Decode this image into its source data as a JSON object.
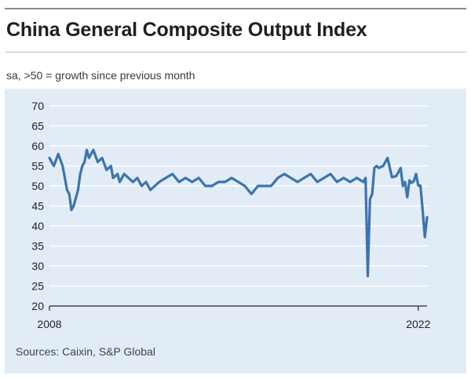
{
  "title": "China General Composite Output Index",
  "subtitle": "sa, >50 = growth since previous month",
  "source": "Sources: Caixin, S&P Global",
  "colors": {
    "line": "#3c74ad",
    "panel": "#e2ecf7",
    "grid": "#ffffff",
    "axis": "#222222"
  },
  "chart_data": {
    "type": "line",
    "title": "China General Composite Output Index",
    "xlabel": "",
    "ylabel": "",
    "ylim": [
      20,
      70
    ],
    "xlim": [
      "2008-01",
      "2022-05"
    ],
    "grid": true,
    "legend": "none",
    "y_ticks": [
      "70",
      "65",
      "60",
      "55",
      "50",
      "45",
      "40",
      "35",
      "30",
      "25",
      "20"
    ],
    "x_ticks": [
      "2008",
      "2022"
    ],
    "series": [
      {
        "x": [
          "2008-01",
          "2008-03",
          "2008-05",
          "2008-07",
          "2008-09",
          "2008-10",
          "2008-11",
          "2008-12",
          "2009-02",
          "2009-03",
          "2009-04",
          "2009-05",
          "2009-06",
          "2009-07",
          "2009-09",
          "2009-11",
          "2010-01",
          "2010-03",
          "2010-05",
          "2010-06",
          "2010-08",
          "2010-09",
          "2010-11",
          "2011-01",
          "2011-03",
          "2011-05",
          "2011-07",
          "2011-09",
          "2011-11",
          "2012-01",
          "2012-03",
          "2012-06",
          "2012-09",
          "2012-12",
          "2013-03",
          "2013-06",
          "2013-09",
          "2013-12",
          "2014-03",
          "2014-06",
          "2014-09",
          "2014-12",
          "2015-03",
          "2015-06",
          "2015-09",
          "2015-12",
          "2016-03",
          "2016-06",
          "2016-09",
          "2016-12",
          "2017-03",
          "2017-06",
          "2017-09",
          "2017-12",
          "2018-03",
          "2018-06",
          "2018-09",
          "2018-12",
          "2019-03",
          "2019-06",
          "2019-09",
          "2019-12",
          "2020-01",
          "2020-02",
          "2020-03",
          "2020-04",
          "2020-05",
          "2020-06",
          "2020-07",
          "2020-09",
          "2020-11",
          "2021-01",
          "2021-03",
          "2021-05",
          "2021-06",
          "2021-07",
          "2021-08",
          "2021-09",
          "2021-10",
          "2021-11",
          "2021-12",
          "2022-01",
          "2022-02",
          "2022-03",
          "2022-04",
          "2022-05"
        ],
        "values": [
          57,
          55,
          58,
          55,
          49,
          48,
          44,
          45,
          49,
          53,
          55,
          56,
          59,
          57,
          59,
          56,
          57,
          54,
          55,
          52,
          53,
          51,
          53,
          52,
          51,
          52,
          50,
          51,
          49,
          50,
          51,
          52,
          53,
          51,
          52,
          51,
          52,
          50,
          50,
          51,
          51,
          52,
          51,
          50,
          48,
          50,
          50,
          50,
          52,
          53,
          52,
          51,
          52,
          53,
          51,
          52,
          53,
          51,
          52,
          51,
          52,
          51,
          52,
          27.5,
          46.7,
          48,
          54.5,
          55,
          54.5,
          55,
          57,
          52.2,
          52.5,
          54.5,
          50,
          51,
          47.2,
          51.4,
          50.8,
          51.2,
          53,
          50.1,
          50.1,
          43.9,
          37.2,
          42.2
        ]
      }
    ]
  }
}
